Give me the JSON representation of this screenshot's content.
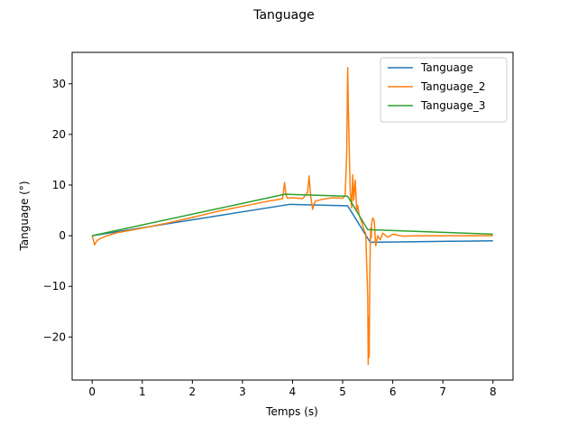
{
  "chart_data": {
    "type": "line",
    "title": "Tanguage",
    "xlabel": "Temps (s)",
    "ylabel": "Tanguage (°)",
    "xlim": [
      -0.4,
      8.4
    ],
    "ylim": [
      -28.5,
      36.2
    ],
    "xticks": [
      0,
      1,
      2,
      3,
      4,
      5,
      6,
      7,
      8
    ],
    "yticks": [
      -20,
      -10,
      0,
      10,
      20,
      30
    ],
    "ytick_labels": [
      "−20",
      "−10",
      "0",
      "10",
      "20",
      "30"
    ],
    "grid": false,
    "legend_position": "upper right",
    "series": [
      {
        "name": "Tanguage",
        "color": "#1f77b4",
        "x": [
          0,
          3.95,
          5.1,
          5.55,
          8
        ],
        "y": [
          0,
          6.2,
          5.9,
          -1.3,
          -1.0
        ]
      },
      {
        "name": "Tanguage_2",
        "color": "#ff7f0e",
        "x": [
          0,
          0.05,
          0.08,
          0.12,
          0.2,
          0.3,
          0.5,
          1,
          1.5,
          2,
          2.5,
          3,
          3.5,
          3.8,
          3.84,
          3.87,
          3.9,
          4.0,
          4.2,
          4.3,
          4.33,
          4.36,
          4.4,
          4.45,
          4.6,
          4.8,
          5.0,
          5.05,
          5.08,
          5.1,
          5.12,
          5.15,
          5.18,
          5.2,
          5.22,
          5.25,
          5.28,
          5.3,
          5.33,
          5.37,
          5.4,
          5.43,
          5.46,
          5.5,
          5.51,
          5.52,
          5.53,
          5.54,
          5.55,
          5.56,
          5.57,
          5.58,
          5.6,
          5.63,
          5.66,
          5.7,
          5.75,
          5.8,
          5.9,
          6.0,
          6.2,
          6.5,
          7,
          7.5,
          8
        ],
        "y": [
          0,
          -1.8,
          -1.2,
          -0.8,
          -0.4,
          0,
          0.6,
          1.5,
          2.5,
          3.6,
          4.8,
          5.8,
          6.8,
          7.3,
          10.5,
          8,
          7.4,
          7.5,
          7.3,
          8.5,
          11.8,
          8,
          5.2,
          6.8,
          7.2,
          7.5,
          7.4,
          8,
          16,
          33.2,
          22,
          9,
          5.5,
          12,
          7,
          11,
          5,
          6,
          4,
          3,
          2,
          1,
          0.5,
          -12,
          -25.4,
          -16,
          -24,
          -10,
          -2,
          1.5,
          -0.5,
          2.5,
          3.5,
          3,
          -2,
          0,
          -0.8,
          0.5,
          -0.3,
          0.3,
          -0.1,
          0,
          0,
          0,
          0
        ]
      },
      {
        "name": "Tanguage_3",
        "color": "#2ca02c",
        "x": [
          0,
          3.85,
          5.1,
          5.5,
          8
        ],
        "y": [
          0,
          8.2,
          7.8,
          1.2,
          0.3
        ]
      }
    ]
  }
}
